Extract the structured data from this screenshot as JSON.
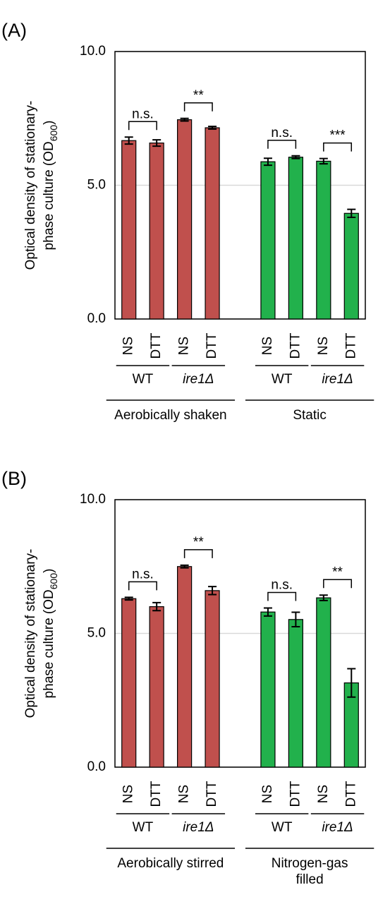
{
  "chart_data": [
    {
      "type": "bar",
      "panel_label": "(A)",
      "ylabel": [
        "Optical density of stationary-",
        "phase culture (OD",
        "600",
        ")"
      ],
      "categories": [
        "NS",
        "DTT",
        "NS",
        "DTT",
        "NS",
        "DTT",
        "NS",
        "DTT"
      ],
      "values": [
        6.67,
        6.58,
        7.45,
        7.15,
        5.88,
        6.05,
        5.9,
        3.95
      ],
      "errors": [
        0.13,
        0.12,
        0.05,
        0.05,
        0.13,
        0.05,
        0.1,
        0.15
      ],
      "strains": [
        "WT",
        "ire1Δ",
        "WT",
        "ire1Δ"
      ],
      "conditions": [
        [
          "Aerobically shaken"
        ],
        [
          "Static"
        ]
      ],
      "colors": [
        "#c0504d",
        "#22b14c"
      ],
      "significance": [
        "n.s.",
        "**",
        "n.s.",
        "***"
      ],
      "ylim": [
        0,
        10
      ],
      "yticks": [
        {
          "value": 0,
          "label": "0.0"
        },
        {
          "value": 5,
          "label": "5.0"
        },
        {
          "value": 10,
          "label": "10.0"
        }
      ],
      "grid": true
    },
    {
      "type": "bar",
      "panel_label": "(B)",
      "ylabel": [
        "Optical density of stationary-",
        "phase culture (OD",
        "600",
        ")"
      ],
      "categories": [
        "NS",
        "DTT",
        "NS",
        "DTT",
        "NS",
        "DTT",
        "NS",
        "DTT"
      ],
      "values": [
        6.3,
        6.0,
        7.5,
        6.6,
        5.8,
        5.52,
        6.33,
        3.15
      ],
      "errors": [
        0.05,
        0.15,
        0.05,
        0.15,
        0.15,
        0.27,
        0.1,
        0.53
      ],
      "strains": [
        "WT",
        "ire1Δ",
        "WT",
        "ire1Δ"
      ],
      "conditions": [
        [
          "Aerobically stirred"
        ],
        [
          "Nitrogen-gas",
          "filled"
        ]
      ],
      "colors": [
        "#c0504d",
        "#22b14c"
      ],
      "significance": [
        "n.s.",
        "**",
        "n.s.",
        "**"
      ],
      "ylim": [
        0,
        10
      ],
      "yticks": [
        {
          "value": 0,
          "label": "0.0"
        },
        {
          "value": 5,
          "label": "5.0"
        },
        {
          "value": 10,
          "label": "10.0"
        }
      ],
      "grid": true
    }
  ]
}
